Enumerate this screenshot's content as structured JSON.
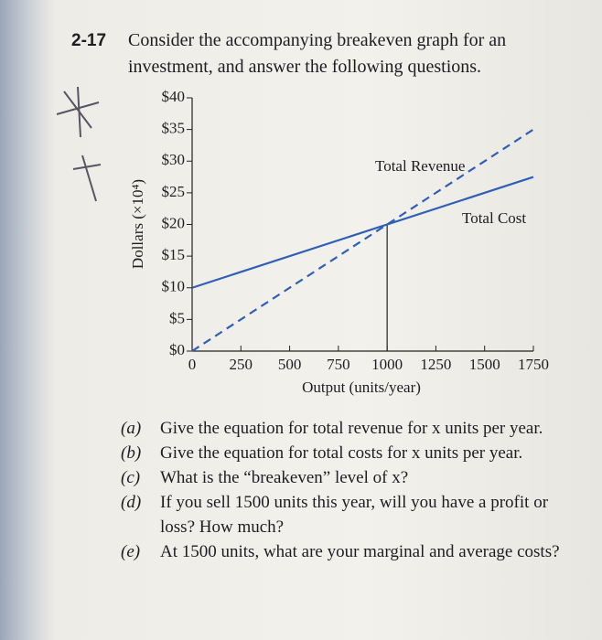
{
  "problem": {
    "number": "2-17",
    "intro": [
      "Consider the accompanying breakeven graph for an",
      "investment, and answer the following questions."
    ]
  },
  "chart_data": {
    "type": "line",
    "ylabel": "Dollars (×10⁴)",
    "xlabel": "Output (units/year)",
    "x": [
      0,
      1750
    ],
    "series": [
      {
        "name": "Total Revenue",
        "color": "#2f5fb8",
        "style": "dashed",
        "values": [
          0,
          35
        ]
      },
      {
        "name": "Total Cost",
        "color": "#2f5fb8",
        "style": "solid",
        "values": [
          10,
          27.5
        ]
      }
    ],
    "vline_x": 1000,
    "xlim": [
      0,
      1750
    ],
    "xticks": [
      0,
      250,
      500,
      750,
      1000,
      1250,
      1500,
      1750
    ],
    "ylim": [
      0,
      40
    ],
    "yticks": [
      {
        "value": 0,
        "label": "$0"
      },
      {
        "value": 5,
        "label": "$5"
      },
      {
        "value": 10,
        "label": "$10"
      },
      {
        "value": 15,
        "label": "$15"
      },
      {
        "value": 20,
        "label": "$20"
      },
      {
        "value": 25,
        "label": "$25"
      },
      {
        "value": 30,
        "label": "$30"
      },
      {
        "value": 35,
        "label": "$35"
      },
      {
        "value": 40,
        "label": "$40"
      }
    ]
  },
  "questions": [
    {
      "label": "(a)",
      "text": "Give the equation for total revenue for x units per year."
    },
    {
      "label": "(b)",
      "text": "Give the equation for total costs for x units per year."
    },
    {
      "label": "(c)",
      "text": "What is the “breakeven” level of x?"
    },
    {
      "label": "(d)",
      "text": "If you sell 1500 units this year, will you have a profit or loss? How much?"
    },
    {
      "label": "(e)",
      "text": "At 1500 units, what are your marginal and average costs?"
    }
  ]
}
